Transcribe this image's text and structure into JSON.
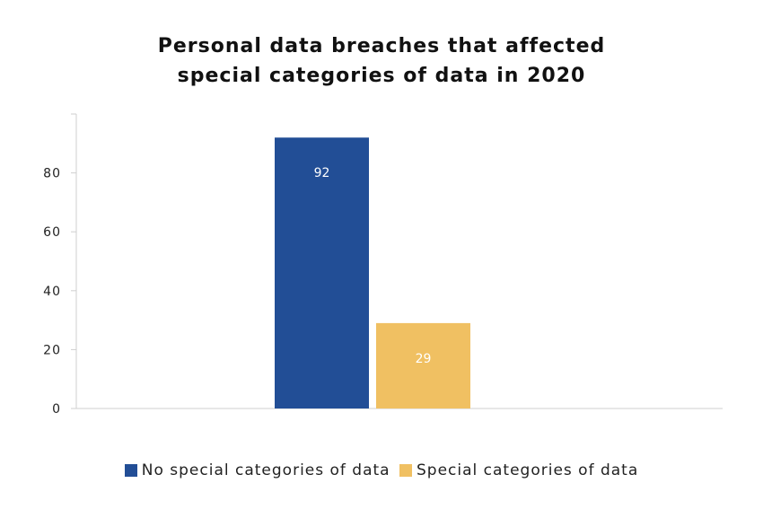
{
  "chart_data": {
    "type": "bar",
    "title_lines": [
      "Personal data breaches that affected",
      "special categories of data in 2020"
    ],
    "xlabel": "",
    "ylabel": "",
    "ylim": [
      0,
      100
    ],
    "yticks": [
      0,
      20,
      40,
      60,
      80
    ],
    "series": [
      {
        "name": "No special categories of data",
        "value": 92,
        "label": "92",
        "color": "#224e96"
      },
      {
        "name": "Special categories of data",
        "value": 29,
        "label": "29",
        "color": "#f0c062"
      }
    ],
    "legend_position": "bottom",
    "grid": false
  }
}
